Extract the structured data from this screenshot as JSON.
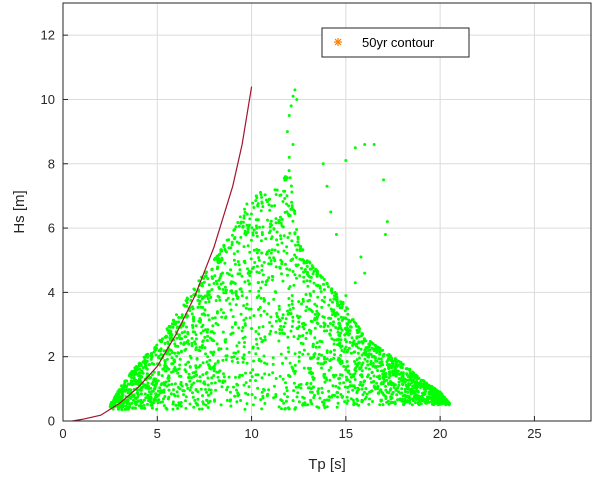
{
  "chart_data": {
    "type": "scatter",
    "xlabel": "Tp [s]",
    "ylabel": "Hs [m]",
    "xlim": [
      0,
      28
    ],
    "ylim": [
      0,
      13
    ],
    "xticks": [
      0,
      5,
      10,
      15,
      20,
      25
    ],
    "yticks": [
      0,
      2,
      4,
      6,
      8,
      10,
      12
    ],
    "grid": true,
    "legend": {
      "position": "top-right",
      "entries": [
        "50yr contour"
      ]
    },
    "colors": {
      "scatter": "#00ff00",
      "steepness_curve": "#a2142f",
      "contour_marker": "#ff8000",
      "axis": "#262626",
      "grid": "#dcdcdc"
    },
    "series": [
      {
        "name": "50yr contour",
        "kind": "marker",
        "x": [
          14.5
        ],
        "y": [
          12.05
        ]
      },
      {
        "kind": "line",
        "x": [
          0.5,
          1.0,
          2.0,
          3.0,
          4.0,
          5.0,
          6.0,
          7.0,
          8.0,
          9.0,
          9.5,
          10.0
        ],
        "y": [
          0.0,
          0.05,
          0.18,
          0.55,
          1.05,
          1.7,
          2.7,
          3.9,
          5.4,
          7.3,
          8.6,
          10.4
        ]
      },
      {
        "kind": "scatter-cloud",
        "envelope_x": [
          2.5,
          3.2,
          4.0,
          5.0,
          6.0,
          7.0,
          8.0,
          9.0,
          9.5,
          10.0,
          10.5,
          11.0,
          11.5,
          12.0,
          12.5,
          13.0,
          14.0,
          15.0,
          16.0,
          17.0,
          18.0,
          19.0,
          20.0,
          20.5
        ],
        "envelope_upper": [
          0.5,
          1.2,
          1.8,
          2.4,
          3.3,
          4.2,
          5.0,
          5.9,
          6.6,
          6.9,
          7.2,
          7.0,
          7.4,
          7.8,
          5.6,
          5.0,
          4.3,
          3.6,
          2.6,
          2.2,
          1.8,
          1.3,
          0.9,
          0.55
        ],
        "envelope_lower": [
          0.35,
          0.35,
          0.35,
          0.35,
          0.35,
          0.35,
          0.35,
          0.35,
          0.35,
          0.35,
          0.35,
          0.35,
          0.35,
          0.35,
          0.35,
          0.35,
          0.4,
          0.45,
          0.5,
          0.5,
          0.5,
          0.5,
          0.5,
          0.5
        ],
        "extra_x": [
          11.9,
          12.0,
          12.1,
          12.2,
          12.3,
          12.4,
          12.2,
          12.0,
          11.8,
          13.8,
          14.0,
          14.2,
          14.5,
          15.0,
          15.5,
          16.0,
          16.5,
          17.0,
          17.2,
          17.1,
          16.0,
          15.8,
          15.5,
          15.0
        ],
        "extra_y": [
          9.0,
          9.5,
          9.8,
          10.1,
          10.3,
          10.0,
          8.6,
          8.2,
          7.6,
          8.0,
          7.3,
          6.5,
          5.8,
          8.1,
          8.5,
          8.6,
          8.6,
          7.5,
          6.2,
          5.8,
          4.6,
          5.1,
          4.3,
          3.9
        ]
      }
    ]
  }
}
